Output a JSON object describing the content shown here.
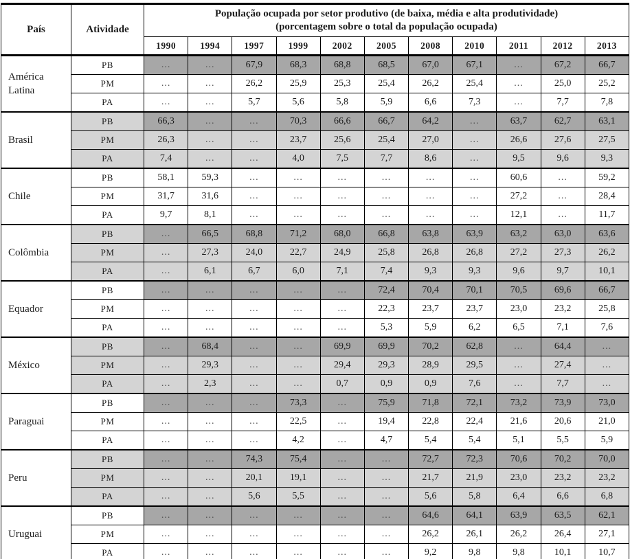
{
  "table": {
    "title_line1": "População ocupada por setor produtivo (de baixa, média e alta produtividade)",
    "title_line2": "(porcentagem sobre o total da população ocupada)",
    "col_country": "País",
    "col_activity": "Atividade",
    "years": [
      "1990",
      "1994",
      "1997",
      "1999",
      "2002",
      "2005",
      "2008",
      "2010",
      "2011",
      "2012",
      "2013"
    ],
    "missing_marker": "...",
    "colors": {
      "pb_row_fill": "#a7a7a7",
      "shaded_group_fill": "#d4d4d4",
      "border": "#000000"
    },
    "groups": [
      {
        "country": "América Latina",
        "shaded": false,
        "pb_dark": true,
        "rows": [
          {
            "activity": "PB",
            "values": [
              "...",
              "...",
              "67,9",
              "68,3",
              "68,8",
              "68,5",
              "67,0",
              "67,1",
              "...",
              "67,2",
              "66,7"
            ]
          },
          {
            "activity": "PM",
            "values": [
              "...",
              "...",
              "26,2",
              "25,9",
              "25,3",
              "25,4",
              "26,2",
              "25,4",
              "...",
              "25,0",
              "25,2"
            ]
          },
          {
            "activity": "PA",
            "values": [
              "...",
              "...",
              "5,7",
              "5,6",
              "5,8",
              "5,9",
              "6,6",
              "7,3",
              "...",
              "7,7",
              "7,8"
            ]
          }
        ]
      },
      {
        "country": "Brasil",
        "shaded": true,
        "pb_dark": true,
        "rows": [
          {
            "activity": "PB",
            "values": [
              "66,3",
              "...",
              "...",
              "70,3",
              "66,6",
              "66,7",
              "64,2",
              "...",
              "63,7",
              "62,7",
              "63,1"
            ]
          },
          {
            "activity": "PM",
            "values": [
              "26,3",
              "...",
              "...",
              "23,7",
              "25,6",
              "25,4",
              "27,0",
              "...",
              "26,6",
              "27,6",
              "27,5"
            ]
          },
          {
            "activity": "PA",
            "values": [
              "7,4",
              "...",
              "...",
              "4,0",
              "7,5",
              "7,7",
              "8,6",
              "...",
              "9,5",
              "9,6",
              "9,3"
            ]
          }
        ]
      },
      {
        "country": "Chile",
        "shaded": false,
        "pb_dark": false,
        "rows": [
          {
            "activity": "PB",
            "values": [
              "58,1",
              "59,3",
              "...",
              "...",
              "...",
              "...",
              "...",
              "...",
              "60,6",
              "...",
              "59,2"
            ]
          },
          {
            "activity": "PM",
            "values": [
              "31,7",
              "31,6",
              "...",
              "...",
              "...",
              "...",
              "...",
              "...",
              "27,2",
              "...",
              "28,4"
            ]
          },
          {
            "activity": "PA",
            "values": [
              "9,7",
              "8,1",
              "...",
              "...",
              "...",
              "...",
              "...",
              "...",
              "12,1",
              "...",
              "11,7"
            ]
          }
        ]
      },
      {
        "country": "Colômbia",
        "shaded": true,
        "pb_dark": true,
        "rows": [
          {
            "activity": "PB",
            "values": [
              "...",
              "66,5",
              "68,8",
              "71,2",
              "68,0",
              "66,8",
              "63,8",
              "63,9",
              "63,2",
              "63,0",
              "63,6"
            ]
          },
          {
            "activity": "PM",
            "values": [
              "...",
              "27,3",
              "24,0",
              "22,7",
              "24,9",
              "25,8",
              "26,8",
              "26,8",
              "27,2",
              "27,3",
              "26,2"
            ]
          },
          {
            "activity": "PA",
            "values": [
              "...",
              "6,1",
              "6,7",
              "6,0",
              "7,1",
              "7,4",
              "9,3",
              "9,3",
              "9,6",
              "9,7",
              "10,1"
            ]
          }
        ]
      },
      {
        "country": "Equador",
        "shaded": false,
        "pb_dark": true,
        "rows": [
          {
            "activity": "PB",
            "values": [
              "...",
              "...",
              "...",
              "...",
              "...",
              "72,4",
              "70,4",
              "70,1",
              "70,5",
              "69,6",
              "66,7"
            ]
          },
          {
            "activity": "PM",
            "values": [
              "...",
              "...",
              "...",
              "...",
              "...",
              "22,3",
              "23,7",
              "23,7",
              "23,0",
              "23,2",
              "25,8"
            ]
          },
          {
            "activity": "PA",
            "values": [
              "...",
              "...",
              "...",
              "...",
              "...",
              "5,3",
              "5,9",
              "6,2",
              "6,5",
              "7,1",
              "7,6"
            ]
          }
        ]
      },
      {
        "country": "México",
        "shaded": true,
        "pb_dark": true,
        "rows": [
          {
            "activity": "PB",
            "values": [
              "...",
              "68,4",
              "...",
              "...",
              "69,9",
              "69,9",
              "70,2",
              "62,8",
              "...",
              "64,4",
              "..."
            ]
          },
          {
            "activity": "PM",
            "values": [
              "...",
              "29,3",
              "...",
              "...",
              "29,4",
              "29,3",
              "28,9",
              "29,5",
              "...",
              "27,4",
              "..."
            ]
          },
          {
            "activity": "PA",
            "values": [
              "...",
              "2,3",
              "...",
              "...",
              "0,7",
              "0,9",
              "0,9",
              "7,6",
              "...",
              "7,7",
              "..."
            ]
          }
        ]
      },
      {
        "country": "Paraguai",
        "shaded": false,
        "pb_dark": true,
        "rows": [
          {
            "activity": "PB",
            "values": [
              "...",
              "...",
              "...",
              "73,3",
              "...",
              "75,9",
              "71,8",
              "72,1",
              "73,2",
              "73,9",
              "73,0"
            ]
          },
          {
            "activity": "PM",
            "values": [
              "...",
              "...",
              "...",
              "22,5",
              "...",
              "19,4",
              "22,8",
              "22,4",
              "21,6",
              "20,6",
              "21,0"
            ]
          },
          {
            "activity": "PA",
            "values": [
              "...",
              "...",
              "...",
              "4,2",
              "...",
              "4,7",
              "5,4",
              "5,4",
              "5,1",
              "5,5",
              "5,9"
            ]
          }
        ]
      },
      {
        "country": "Peru",
        "shaded": true,
        "pb_dark": true,
        "rows": [
          {
            "activity": "PB",
            "values": [
              "...",
              "...",
              "74,3",
              "75,4",
              "...",
              "...",
              "72,7",
              "72,3",
              "70,6",
              "70,2",
              "70,0"
            ]
          },
          {
            "activity": "PM",
            "values": [
              "...",
              "...",
              "20,1",
              "19,1",
              "...",
              "...",
              "21,7",
              "21,9",
              "23,0",
              "23,2",
              "23,2"
            ]
          },
          {
            "activity": "PA",
            "values": [
              "...",
              "...",
              "5,6",
              "5,5",
              "...",
              "...",
              "5,6",
              "5,8",
              "6,4",
              "6,6",
              "6,8"
            ]
          }
        ]
      },
      {
        "country": "Uruguai",
        "shaded": false,
        "pb_dark": true,
        "rows": [
          {
            "activity": "PB",
            "values": [
              "...",
              "...",
              "...",
              "...",
              "...",
              "...",
              "64,6",
              "64,1",
              "63,9",
              "63,5",
              "62,1"
            ]
          },
          {
            "activity": "PM",
            "values": [
              "...",
              "...",
              "...",
              "...",
              "...",
              "...",
              "26,2",
              "26,1",
              "26,2",
              "26,4",
              "27,1"
            ]
          },
          {
            "activity": "PA",
            "values": [
              "...",
              "...",
              "...",
              "...",
              "...",
              "...",
              "9,2",
              "9,8",
              "9,8",
              "10,1",
              "10,7"
            ]
          }
        ]
      }
    ]
  }
}
